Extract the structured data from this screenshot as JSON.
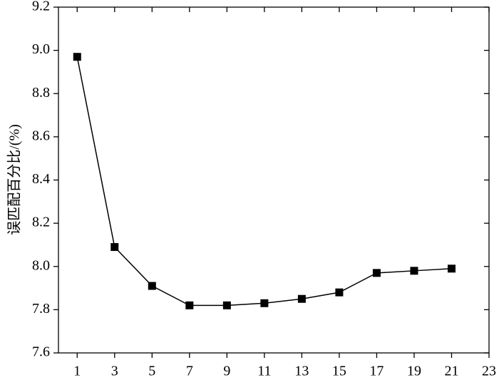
{
  "chart_data": {
    "type": "line",
    "y_label": "误匹配百分比/(%)",
    "x": [
      1,
      3,
      5,
      7,
      9,
      11,
      13,
      15,
      17,
      19,
      21
    ],
    "values": [
      8.97,
      8.09,
      7.91,
      7.82,
      7.82,
      7.83,
      7.85,
      7.88,
      7.97,
      7.98,
      7.99
    ],
    "color": "#000000",
    "xlim": [
      0,
      23
    ],
    "xticks": [
      1,
      3,
      5,
      7,
      9,
      11,
      13,
      15,
      17,
      19,
      21,
      23
    ],
    "ylim": [
      7.6,
      9.2
    ],
    "yticks": [
      7.6,
      7.8,
      {
        "value": 8,
        "label": "8.0"
      },
      8.2,
      8.4,
      8.6,
      8.8,
      {
        "value": 9,
        "label": "9.0"
      },
      9.2
    ],
    "marker": "square"
  }
}
